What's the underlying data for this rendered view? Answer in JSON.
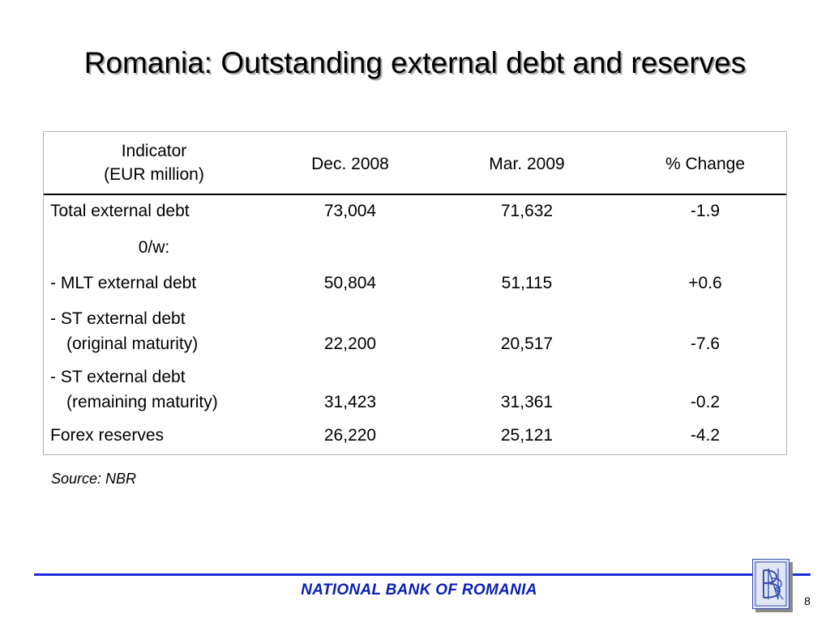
{
  "slide": {
    "title": "Romania: Outstanding external debt and reserves",
    "source": "Source: NBR",
    "footer": "NATIONAL BANK OF ROMANIA",
    "page_number": "8",
    "logo_monogram": "BNR",
    "colors": {
      "footer_blue": "#0b1fb8",
      "rule_blue": "#1f2bd6",
      "logo_fill": "#dfe6f5",
      "logo_line": "#3a4fb0"
    }
  },
  "table": {
    "headers": {
      "indicator_line1": "Indicator",
      "indicator_line2": "(EUR million)",
      "dec2008": "Dec. 2008",
      "mar2009": "Mar. 2009",
      "change": "% Change"
    },
    "rows": [
      {
        "label": "Total external debt",
        "dec2008": "73,004",
        "mar2009": "71,632",
        "change": "-1.9"
      },
      {
        "label": "0/w:"
      },
      {
        "label": "- MLT external debt",
        "dec2008": "50,804",
        "mar2009": "51,115",
        "change": "+0.6"
      },
      {
        "label_line1": "-  ST external debt",
        "label_line2": "(original maturity)",
        "dec2008": "22,200",
        "mar2009": "20,517",
        "change": "-7.6"
      },
      {
        "label_line1": "- ST external debt",
        "label_line2": "(remaining maturity)",
        "dec2008": "31,423",
        "mar2009": "31,361",
        "change": "-0.2"
      },
      {
        "label": "Forex reserves",
        "dec2008": "26,220",
        "mar2009": "25,121",
        "change": "-4.2"
      }
    ]
  }
}
